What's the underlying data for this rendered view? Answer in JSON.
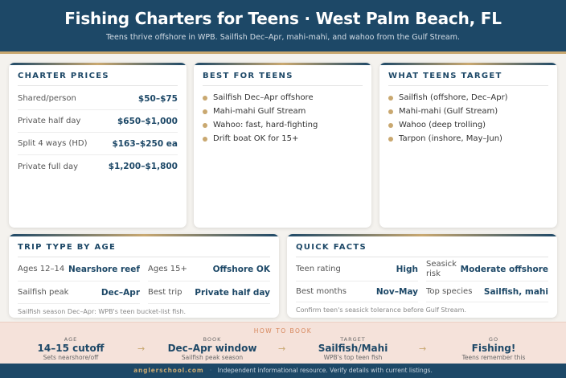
{
  "header": {
    "title": "Fishing Charters for Teens · West Palm Beach, FL",
    "subtitle": "Teens thrive offshore in WPB. Sailfish Dec–Apr, mahi-mahi, and wahoo from the Gulf Stream."
  },
  "prices": {
    "title": "CHARTER PRICES",
    "rows": [
      {
        "label": "Shared/person",
        "value": "$50–$75"
      },
      {
        "label": "Private half day",
        "value": "$650–$1,000"
      },
      {
        "label": "Split 4 ways (HD)",
        "value": "$163–$250 ea"
      },
      {
        "label": "Private full day",
        "value": "$1,200–$1,800"
      }
    ]
  },
  "best": {
    "title": "BEST FOR TEENS",
    "items": [
      "Sailfish Dec–Apr offshore",
      "Mahi-mahi Gulf Stream",
      "Wahoo: fast, hard-fighting",
      "Drift boat OK for 15+"
    ]
  },
  "target": {
    "title": "WHAT TEENS TARGET",
    "items": [
      "Sailfish (offshore, Dec–Apr)",
      "Mahi-mahi (Gulf Stream)",
      "Wahoo (deep trolling)",
      "Tarpon (inshore, May–Jun)"
    ]
  },
  "trip": {
    "title": "TRIP TYPE BY AGE",
    "cells": [
      {
        "label": "Ages 12–14",
        "value": "Nearshore reef"
      },
      {
        "label": "Ages 15+",
        "value": "Offshore OK"
      },
      {
        "label": "Sailfish peak",
        "value": "Dec–Apr"
      },
      {
        "label": "Best trip",
        "value": "Private half day"
      }
    ],
    "note": "Sailfish season Dec–Apr: WPB's teen bucket-list fish."
  },
  "facts": {
    "title": "QUICK FACTS",
    "cells": [
      {
        "label": "Teen rating",
        "value": "High"
      },
      {
        "label": "Seasick risk",
        "value": "Moderate offshore"
      },
      {
        "label": "Best months",
        "value": "Nov–May"
      },
      {
        "label": "Top species",
        "value": "Sailfish, mahi"
      }
    ],
    "note": "Confirm teen's seasick tolerance before Gulf Stream."
  },
  "book": {
    "title": "HOW TO BOOK",
    "steps": [
      {
        "key": "AGE",
        "main": "14–15 cutoff",
        "sub": "Sets nearshore/off"
      },
      {
        "key": "BOOK",
        "main": "Dec–Apr window",
        "sub": "Sailfish peak season"
      },
      {
        "key": "TARGET",
        "main": "Sailfish/Mahi",
        "sub": "WPB's top teen fish"
      },
      {
        "key": "GO",
        "main": "Fishing!",
        "sub": "Teens remember this"
      }
    ],
    "arrow": "→"
  },
  "footer": {
    "brand": "anglerschool.com",
    "sep": "·",
    "text": "Independent informational resource. Verify details with current listings."
  },
  "colors": {
    "navy": "#1d4867",
    "gold": "#c9a870",
    "book_bg": "#f5e2da"
  }
}
